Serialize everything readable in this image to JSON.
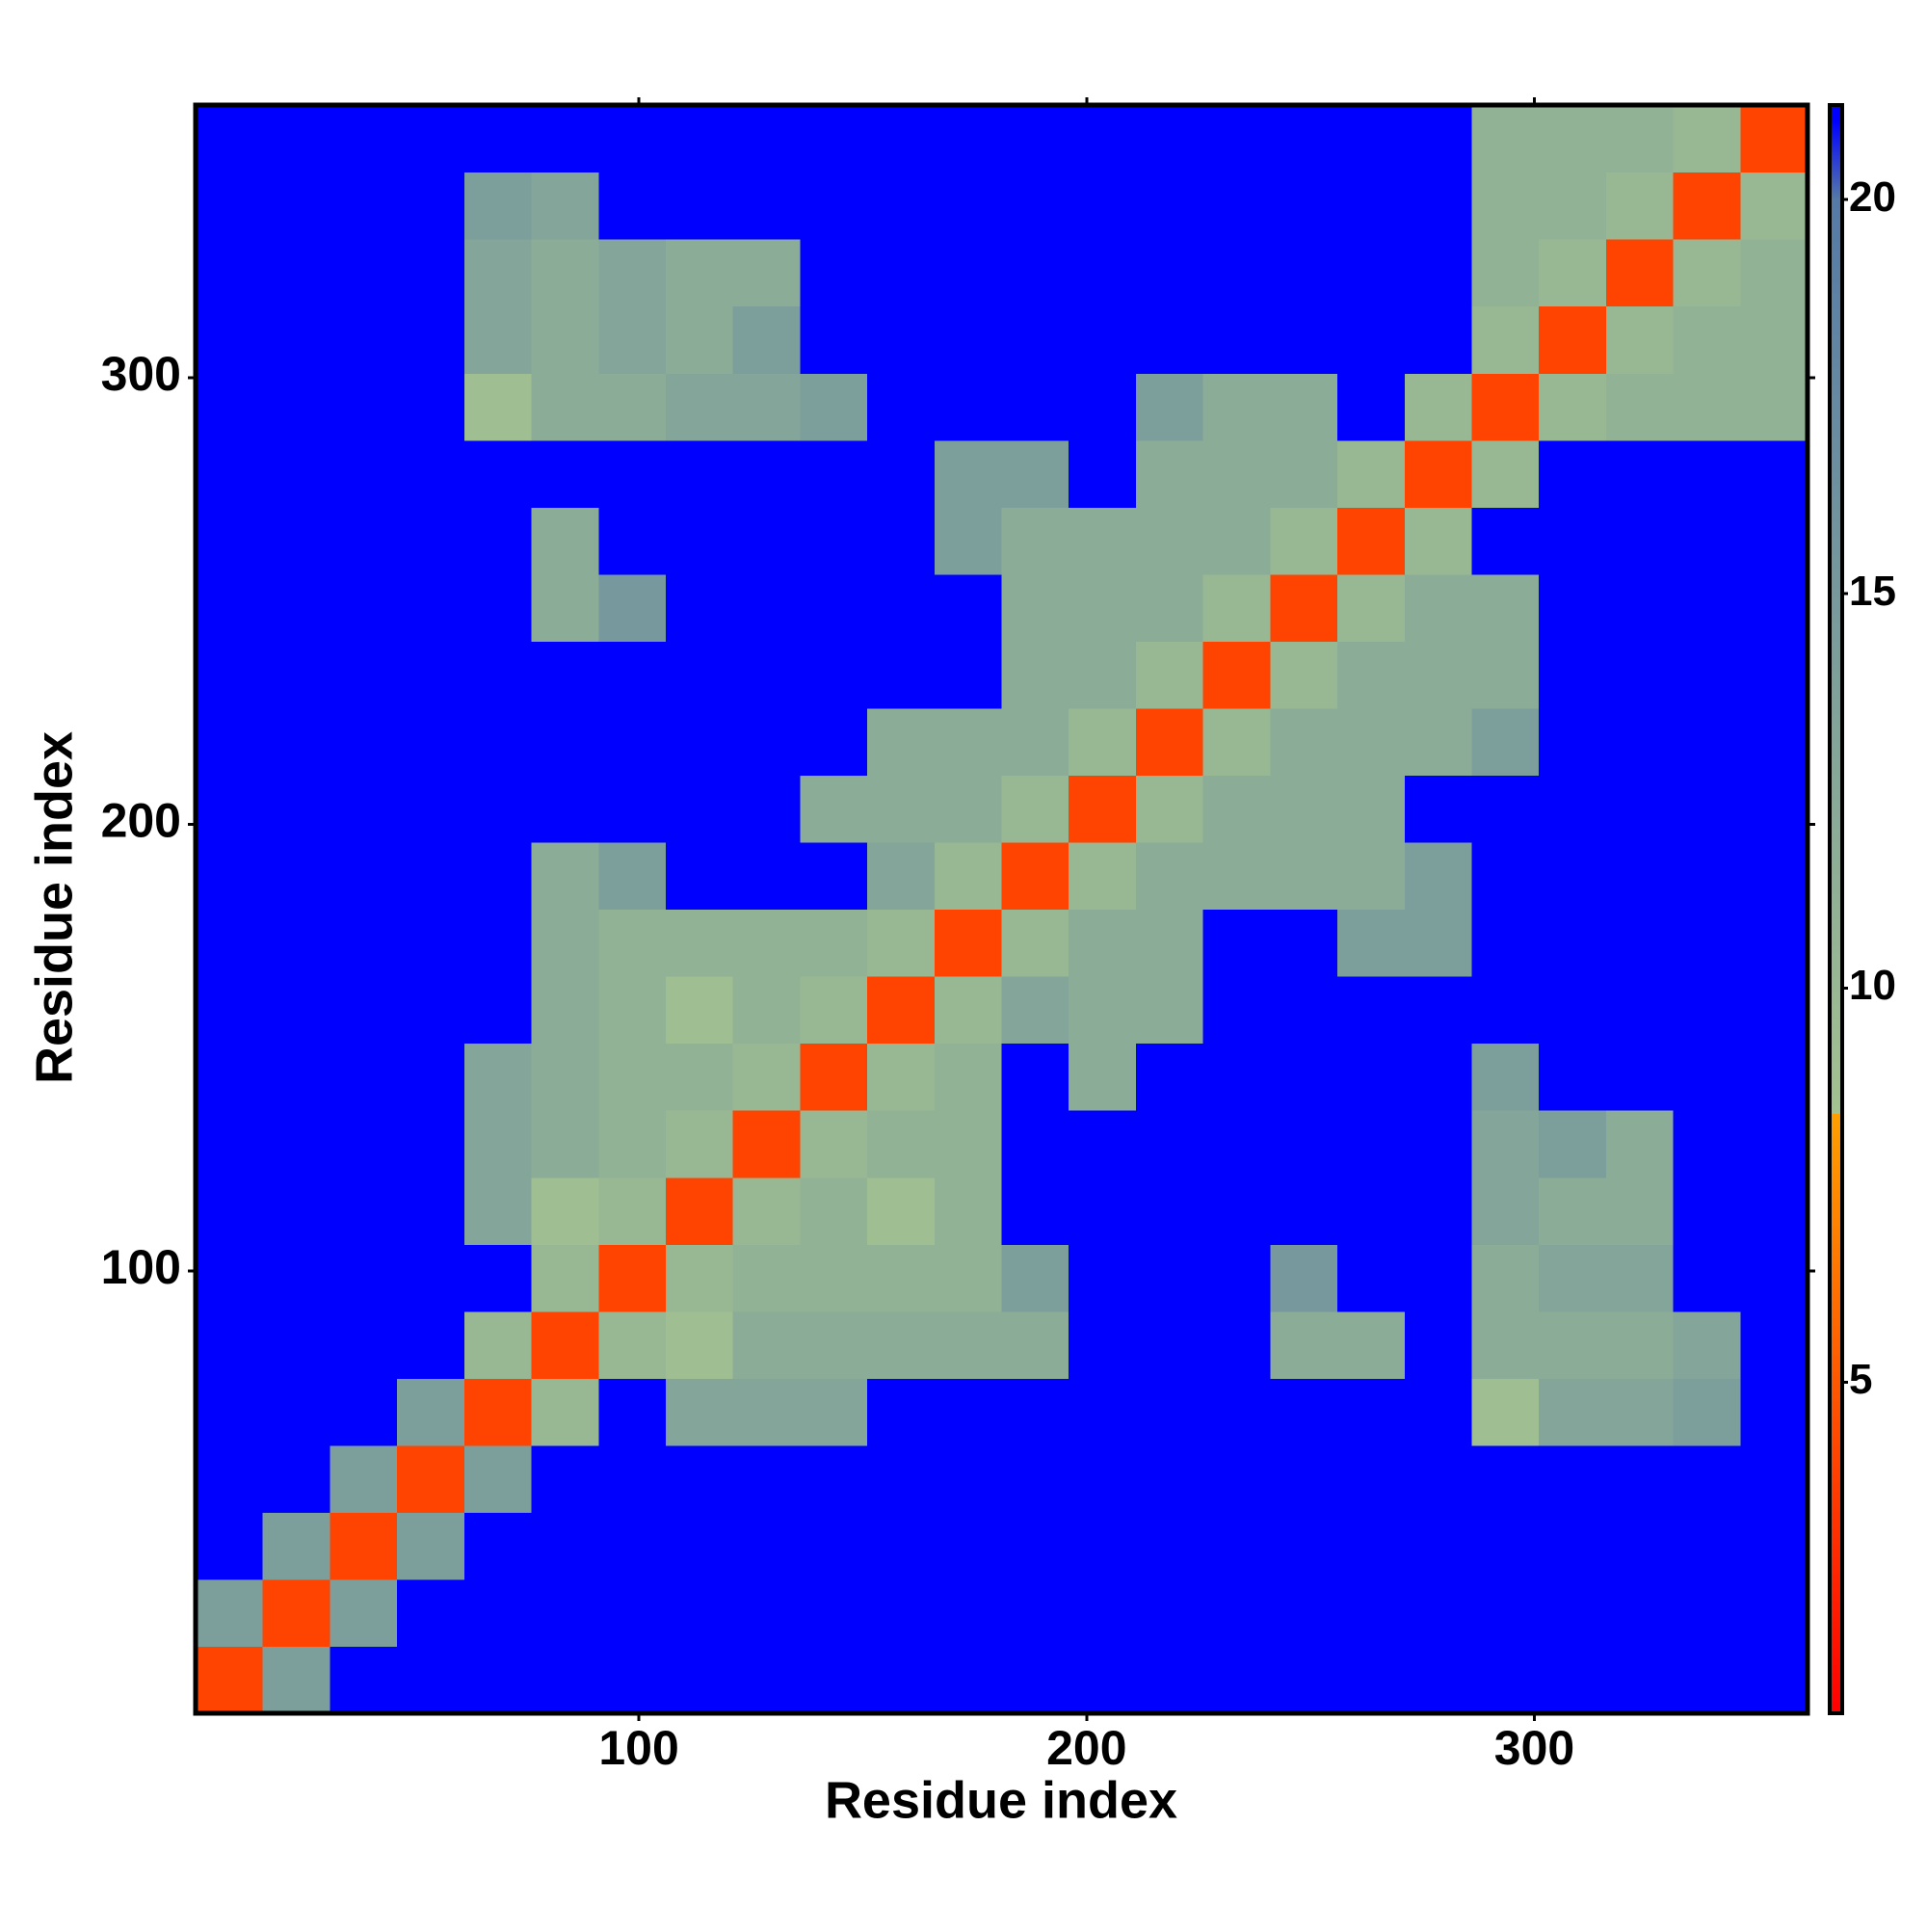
{
  "chart_data": {
    "type": "heatmap",
    "x_label": "Residue index",
    "y_label": "Residue index",
    "x_bins": [
      1,
      16,
      31,
      46,
      61,
      76,
      91,
      106,
      121,
      136,
      151,
      166,
      181,
      196,
      211,
      226,
      241,
      256,
      271,
      286,
      301,
      316,
      331,
      346,
      361
    ],
    "y_bins": [
      1,
      16,
      31,
      46,
      61,
      76,
      91,
      106,
      121,
      136,
      151,
      166,
      181,
      196,
      211,
      226,
      241,
      256,
      271,
      286,
      301,
      316,
      331,
      346,
      361
    ],
    "z": [
      [
        4,
        14,
        21,
        21,
        21,
        21,
        21,
        21,
        21,
        21,
        21,
        21,
        21,
        21,
        21,
        21,
        21,
        21,
        21,
        21,
        21,
        21,
        21,
        21
      ],
      [
        14,
        4,
        14,
        21,
        21,
        21,
        21,
        21,
        21,
        21,
        21,
        21,
        21,
        21,
        21,
        21,
        21,
        21,
        21,
        21,
        21,
        21,
        21,
        21
      ],
      [
        21,
        14,
        4,
        14,
        21,
        21,
        21,
        21,
        21,
        21,
        21,
        21,
        21,
        21,
        21,
        21,
        21,
        21,
        21,
        21,
        21,
        21,
        21,
        21
      ],
      [
        21,
        21,
        14,
        4,
        14,
        21,
        21,
        21,
        21,
        21,
        21,
        21,
        21,
        21,
        21,
        21,
        21,
        21,
        21,
        21,
        21,
        21,
        21,
        21
      ],
      [
        21,
        21,
        21,
        14,
        4,
        10,
        21,
        13,
        13,
        13,
        21,
        21,
        21,
        21,
        21,
        21,
        21,
        21,
        21,
        9,
        13,
        13,
        14,
        21
      ],
      [
        21,
        21,
        21,
        21,
        10,
        4,
        10,
        9,
        12,
        12,
        12,
        12,
        12,
        21,
        21,
        21,
        12,
        12,
        21,
        12,
        12,
        12,
        13,
        21
      ],
      [
        21,
        21,
        21,
        21,
        21,
        10,
        4,
        10,
        11,
        11,
        11,
        11,
        14,
        21,
        21,
        21,
        15,
        21,
        21,
        12,
        13,
        13,
        21,
        21
      ],
      [
        21,
        21,
        21,
        21,
        13,
        9,
        10,
        4,
        10,
        11,
        9,
        11,
        21,
        21,
        21,
        21,
        21,
        21,
        21,
        13,
        12,
        12,
        21,
        21
      ],
      [
        21,
        21,
        21,
        21,
        13,
        12,
        11,
        10,
        4,
        10,
        11,
        11,
        21,
        21,
        21,
        21,
        21,
        21,
        21,
        13,
        14,
        12,
        21,
        21
      ],
      [
        21,
        21,
        21,
        21,
        13,
        12,
        11,
        11,
        10,
        4,
        10,
        11,
        21,
        12,
        21,
        21,
        21,
        21,
        21,
        14,
        21,
        21,
        21,
        21
      ],
      [
        21,
        21,
        21,
        21,
        21,
        12,
        11,
        9,
        11,
        10,
        4,
        10,
        13,
        12,
        12,
        21,
        21,
        21,
        21,
        21,
        21,
        21,
        21,
        21
      ],
      [
        21,
        21,
        21,
        21,
        21,
        12,
        11,
        11,
        11,
        11,
        10,
        4,
        10,
        12,
        12,
        21,
        21,
        14,
        14,
        21,
        21,
        21,
        21,
        21
      ],
      [
        21,
        21,
        21,
        21,
        21,
        12,
        14,
        21,
        21,
        21,
        13,
        10,
        4,
        10,
        12,
        12,
        12,
        12,
        14,
        21,
        21,
        21,
        21,
        21
      ],
      [
        21,
        21,
        21,
        21,
        21,
        21,
        21,
        21,
        21,
        12,
        12,
        12,
        10,
        4,
        10,
        12,
        12,
        12,
        21,
        21,
        21,
        21,
        21,
        21
      ],
      [
        21,
        21,
        21,
        21,
        21,
        21,
        21,
        21,
        21,
        21,
        12,
        12,
        12,
        10,
        4,
        10,
        12,
        12,
        12,
        14,
        21,
        21,
        21,
        21
      ],
      [
        21,
        21,
        21,
        21,
        21,
        21,
        21,
        21,
        21,
        21,
        21,
        21,
        12,
        12,
        10,
        4,
        10,
        12,
        12,
        12,
        21,
        21,
        21,
        21
      ],
      [
        21,
        21,
        21,
        21,
        21,
        12,
        15,
        21,
        21,
        21,
        21,
        21,
        12,
        12,
        12,
        10,
        4,
        10,
        12,
        12,
        21,
        21,
        21,
        21
      ],
      [
        21,
        21,
        21,
        21,
        21,
        12,
        21,
        21,
        21,
        21,
        21,
        14,
        12,
        12,
        12,
        12,
        10,
        4,
        10,
        21,
        21,
        21,
        21,
        21
      ],
      [
        21,
        21,
        21,
        21,
        21,
        21,
        21,
        21,
        21,
        21,
        21,
        14,
        14,
        21,
        12,
        12,
        12,
        10,
        4,
        10,
        21,
        21,
        21,
        21
      ],
      [
        21,
        21,
        21,
        21,
        9,
        12,
        12,
        13,
        13,
        14,
        21,
        21,
        21,
        21,
        14,
        12,
        12,
        21,
        10,
        4,
        10,
        11,
        11,
        11
      ],
      [
        21,
        21,
        21,
        21,
        13,
        12,
        13,
        12,
        14,
        21,
        21,
        21,
        21,
        21,
        21,
        21,
        21,
        21,
        21,
        10,
        4,
        10,
        11,
        11
      ],
      [
        21,
        21,
        21,
        21,
        13,
        12,
        13,
        12,
        12,
        21,
        21,
        21,
        21,
        21,
        21,
        21,
        21,
        21,
        21,
        11,
        10,
        4,
        10,
        11
      ],
      [
        21,
        21,
        21,
        21,
        14,
        13,
        21,
        21,
        21,
        21,
        21,
        21,
        21,
        21,
        21,
        21,
        21,
        21,
        21,
        11,
        11,
        10,
        4,
        10
      ],
      [
        21,
        21,
        21,
        21,
        21,
        21,
        21,
        21,
        21,
        21,
        21,
        21,
        21,
        21,
        21,
        21,
        21,
        21,
        21,
        11,
        11,
        11,
        10,
        4
      ]
    ],
    "xlim": [
      1,
      361
    ],
    "ylim": [
      1,
      361
    ],
    "xticks": [
      100,
      200,
      300
    ],
    "yticks": [
      100,
      200,
      300
    ],
    "colorbar": {
      "zlim": [
        0.8,
        21.2
      ],
      "ticks": [
        5,
        10,
        15,
        20
      ],
      "stops": [
        {
          "value": 0.8,
          "color": "#ff0000"
        },
        {
          "value": 8.4,
          "color": "#ff9f00"
        },
        {
          "value": 8.4,
          "color": "#a3c290"
        },
        {
          "value": 20,
          "color": "#557aa6"
        },
        {
          "value": 21,
          "color": "#0000ff"
        }
      ]
    }
  }
}
